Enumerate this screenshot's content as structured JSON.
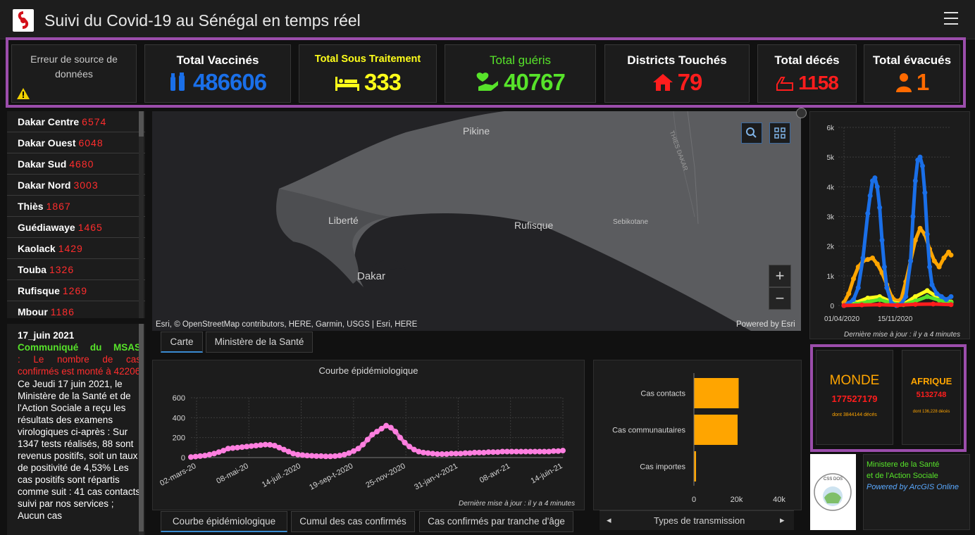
{
  "header": {
    "title": "Suivi du Covid-19 au Sénégal en temps réel"
  },
  "indicators": {
    "error_text": "Erreur de source de données",
    "vaccines": {
      "title": "Total Vaccinés",
      "value": "486606",
      "color": "#1a6fe8"
    },
    "treatment": {
      "title": "Total Sous Traitement",
      "value": "333",
      "color": "#ffff1a"
    },
    "recovered": {
      "title": "Total guéris",
      "value": "40767",
      "color": "#57e32a"
    },
    "districts": {
      "title": "Districts Touchés",
      "value": "79",
      "color": "#ff1d1d"
    },
    "deaths": {
      "title": "Total décés",
      "value": "1158",
      "color": "#ff1d1d"
    },
    "evacuated": {
      "title": "Total évacués",
      "value": "1",
      "color": "#ff6a00"
    }
  },
  "districts": [
    {
      "name": "Dakar Centre",
      "value": "6574"
    },
    {
      "name": "Dakar Ouest",
      "value": "6048"
    },
    {
      "name": "Dakar Sud",
      "value": "4680"
    },
    {
      "name": "Dakar Nord",
      "value": "3003"
    },
    {
      "name": "Thiès",
      "value": "1867"
    },
    {
      "name": "Guédiawaye",
      "value": "1465"
    },
    {
      "name": "Kaolack",
      "value": "1429"
    },
    {
      "name": "Touba",
      "value": "1326"
    },
    {
      "name": "Rufisque",
      "value": "1269"
    },
    {
      "name": "Mbour",
      "value": "1186"
    }
  ],
  "news": {
    "date": "17_juin 2021",
    "heading": "Communiqué du MSAS",
    "highlight": ": Le nombre de cas confirmés est monté à 42206",
    "body": "Ce Jeudi 17 juin 2021, le Ministère de la Santé et de l'Action Sociale a reçu les résultats des examens virologiques ci-après : Sur 1347 tests réalisés, 88 sont revenus positifs, soit un taux de positivité de 4,53% Les cas positifs sont répartis comme suit : 41 cas contacts suivi par nos services ; Aucun cas"
  },
  "map": {
    "places": {
      "pikine": "Pikine",
      "liberte": "Liberté",
      "dakar": "Dakar",
      "rufisque": "Rufisque",
      "sebikotane": "Sebikotane",
      "thies_dakar": "THIES DAKAR"
    },
    "attribution": "Esri, © OpenStreetMap contributors, HERE, Garmin, USGS | Esri, HERE",
    "powered": "Powered by Esri",
    "zoom_in": "+",
    "zoom_out": "−"
  },
  "map_tabs": {
    "carte": "Carte",
    "ministere": "Ministère de la Santé"
  },
  "epi_tabs": {
    "courbe": "Courbe épidémiologique",
    "cumul": "Cumul des cas confirmés",
    "tranche": "Cas confirmés par tranche d'âge"
  },
  "transmission_nav": {
    "label": "Types de transmission",
    "prev": "◂",
    "next": "▸"
  },
  "chart_data": [
    {
      "type": "scatter",
      "title": "Courbe épidémiologique",
      "y_ticks": [
        "0",
        "200",
        "400",
        "600"
      ],
      "ylim": [
        0,
        600
      ],
      "x_ticks": [
        "02-mars-20",
        "08-mai-20",
        "14-juil.-2020",
        "19-sep-t-2020",
        "25-nov-2020",
        "31-jan-v-2021",
        "08-avr-21",
        "14-juin-21"
      ],
      "series": [
        {
          "color": "#ff7fe0",
          "x": [
            0,
            2,
            4,
            6,
            8,
            10,
            12,
            14,
            16,
            18,
            20,
            22,
            24,
            26,
            28,
            30,
            32,
            34,
            36,
            38,
            40,
            42,
            44,
            46,
            48,
            50,
            52,
            54,
            56,
            58,
            60,
            62,
            64,
            66,
            68,
            70,
            72,
            74,
            76,
            78,
            80,
            82,
            84,
            86,
            88,
            90,
            92,
            94,
            96,
            98,
            100,
            102,
            104,
            106,
            108,
            110,
            112,
            114,
            116,
            118,
            120,
            122,
            124,
            126,
            128,
            130,
            132,
            134,
            136,
            138,
            140,
            142,
            144,
            146,
            148,
            150,
            152,
            154,
            156,
            158,
            160
          ],
          "values": [
            5,
            10,
            15,
            20,
            30,
            40,
            55,
            70,
            90,
            95,
            100,
            105,
            110,
            115,
            120,
            125,
            130,
            128,
            120,
            100,
            80,
            60,
            40,
            30,
            25,
            20,
            18,
            15,
            15,
            12,
            12,
            15,
            20,
            30,
            45,
            65,
            90,
            130,
            180,
            230,
            260,
            290,
            320,
            300,
            260,
            200,
            150,
            110,
            80,
            60,
            50,
            45,
            40,
            35,
            35,
            35,
            40,
            40,
            40,
            45,
            45,
            50,
            50,
            50,
            55,
            55,
            55,
            60,
            60,
            60,
            60,
            60,
            60,
            60,
            60,
            60,
            60,
            60,
            65,
            65,
            70
          ]
        }
      ],
      "note": "Dernière mise à jour : il y a 4 minutes"
    },
    {
      "type": "bar",
      "categories": [
        "Cas contacts",
        "Cas communautaires",
        "Cas importes"
      ],
      "values": [
        21000,
        20500,
        1000
      ],
      "x_ticks": [
        "0",
        "20k",
        "40k"
      ],
      "xlim": [
        0,
        40000
      ]
    },
    {
      "type": "scatter",
      "y_ticks": [
        "0",
        "1k",
        "2k",
        "3k",
        "4k",
        "5k",
        "6k"
      ],
      "ylim": [
        0,
        6000
      ],
      "x_ticks": [
        "01/04/2020",
        "15/11/2020"
      ],
      "series": [
        {
          "color": "#1a6fe8",
          "x": [
            0,
            4,
            8,
            12,
            16,
            20,
            22,
            24,
            26,
            28,
            30,
            32,
            34,
            36,
            40,
            44,
            48,
            52,
            56,
            58,
            60,
            62,
            64,
            66,
            68,
            70,
            72,
            74,
            78,
            82,
            86,
            90
          ],
          "values": [
            0,
            80,
            200,
            600,
            1600,
            3100,
            3700,
            4200,
            4300,
            4000,
            3300,
            2200,
            1300,
            600,
            80,
            0,
            50,
            300,
            1500,
            3000,
            4200,
            4900,
            5000,
            4700,
            3800,
            2400,
            1300,
            700,
            400,
            300,
            200,
            300
          ]
        },
        {
          "color": "#ffa500",
          "x": [
            0,
            4,
            8,
            12,
            16,
            20,
            24,
            28,
            32,
            36,
            40,
            44,
            48,
            52,
            56,
            60,
            64,
            68,
            72,
            76,
            80,
            84,
            88,
            90
          ],
          "values": [
            100,
            400,
            900,
            1300,
            1500,
            1550,
            1600,
            1400,
            1100,
            700,
            300,
            150,
            200,
            800,
            1500,
            2200,
            2600,
            2400,
            1900,
            1500,
            1300,
            1600,
            1800,
            1700
          ]
        },
        {
          "color": "#ffff1a",
          "x": [
            0,
            10,
            20,
            30,
            40,
            50,
            60,
            70,
            80,
            90
          ],
          "values": [
            0,
            100,
            250,
            300,
            120,
            40,
            300,
            500,
            250,
            120
          ]
        },
        {
          "color": "#57e32a",
          "x": [
            0,
            10,
            20,
            30,
            40,
            50,
            60,
            70,
            80,
            90
          ],
          "values": [
            0,
            50,
            120,
            200,
            80,
            30,
            150,
            300,
            180,
            100
          ]
        },
        {
          "color": "#ff1d1d",
          "x": [
            0,
            15,
            30,
            45,
            60,
            75,
            90
          ],
          "values": [
            0,
            20,
            30,
            10,
            40,
            50,
            30
          ]
        }
      ],
      "note": "Dernière mise à jour : il y a 4 minutes"
    }
  ],
  "world": {
    "title": "MONDE",
    "value": "177527179",
    "sub": "dont 3844144 décés"
  },
  "africa": {
    "title": "AFRIQUE",
    "value": "5132748",
    "sub": "dont 136,228 décés"
  },
  "credits": {
    "line1": "Ministere de la Santé",
    "line2": "et de l'Action Sociale",
    "line3": "Powered by ArcGIS Online",
    "logo_text": "CSS DOS"
  }
}
